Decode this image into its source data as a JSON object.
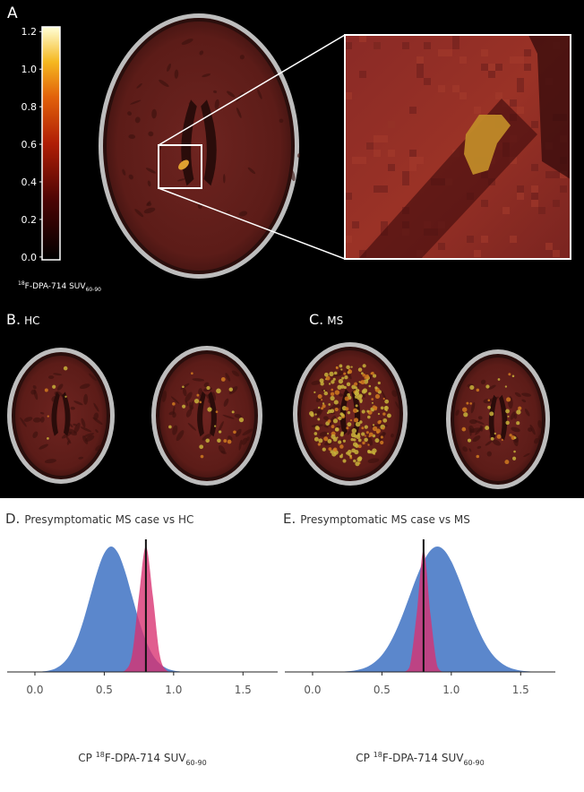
{
  "panels": {
    "a": {
      "label": "A",
      "colorbar": {
        "clim": [
          -0.015,
          1.225
        ],
        "ticks": [
          {
            "value": 0,
            "label": "0.0"
          },
          {
            "value": 0.2,
            "label": "0.2"
          },
          {
            "value": 0.4,
            "label": "0.4"
          },
          {
            "value": 0.6,
            "label": "0.6"
          },
          {
            "value": 0.8,
            "label": "0.8"
          },
          {
            "value": 1,
            "label": "1.0"
          },
          {
            "value": 1.2,
            "label": "1.2"
          }
        ],
        "label": {
          "sup": "18",
          "main": "F-DPA-714 SUV",
          "sub": "60-90"
        }
      }
    },
    "b": {
      "letter": "B.",
      "group": "HC"
    },
    "c": {
      "letter": "C.",
      "group": "MS"
    }
  },
  "chart_data": [
    {
      "type": "density",
      "title": {
        "letter": "D.",
        "text": "Presymptomatic MS case vs HC"
      },
      "x": [
        -0.1,
        -0.05,
        0,
        0.05,
        0.1,
        0.15,
        0.2,
        0.25,
        0.3,
        0.35,
        0.4,
        0.45,
        0.5,
        0.55,
        0.6,
        0.65,
        0.7,
        0.75,
        0.8,
        0.85,
        0.9,
        0.95,
        1,
        1.05,
        1.1,
        1.15,
        1.2,
        1.25,
        1.3,
        1.35,
        1.4,
        1.45,
        1.5,
        1.55,
        1.6,
        1.65,
        1.7,
        1.75
      ],
      "series": [
        {
          "color": "#5b87cc",
          "values": [
            0,
            0,
            0.001,
            0.004,
            0.011,
            0.029,
            0.066,
            0.135,
            0.249,
            0.411,
            0.607,
            0.801,
            0.946,
            1,
            0.946,
            0.801,
            0.607,
            0.411,
            0.249,
            0.135,
            0.066,
            0.029,
            0.011,
            0.004,
            0.001,
            0,
            0,
            0,
            0,
            0,
            0,
            0,
            0,
            0,
            0,
            0,
            0,
            0
          ]
        },
        {
          "color": "#d8306f",
          "values": [
            0,
            0,
            0,
            0,
            0,
            0,
            0,
            0,
            0,
            0,
            0,
            0,
            0,
            0,
            0,
            0.011,
            0.135,
            0.607,
            1,
            0.607,
            0.135,
            0.011,
            0,
            0,
            0,
            0,
            0,
            0,
            0,
            0,
            0,
            0,
            0,
            0,
            0,
            0,
            0,
            0
          ]
        }
      ],
      "reference_line": 0.8,
      "xlim": [
        -0.2,
        1.75
      ],
      "xticks": [
        {
          "value": 0,
          "label": "0.0"
        },
        {
          "value": 0.5,
          "label": "0.5"
        },
        {
          "value": 1,
          "label": "1.0"
        },
        {
          "value": 1.5,
          "label": "1.5"
        }
      ],
      "x_label": {
        "prefix": "CP ",
        "sup": "18",
        "main": "F-DPA-714 SUV",
        "sub": "60-90"
      }
    },
    {
      "type": "density",
      "title": {
        "letter": "E.",
        "text": "Presymptomatic MS case vs MS"
      },
      "x": [
        -0.1,
        -0.05,
        0,
        0.05,
        0.1,
        0.15,
        0.2,
        0.25,
        0.3,
        0.35,
        0.4,
        0.45,
        0.5,
        0.55,
        0.6,
        0.65,
        0.7,
        0.75,
        0.8,
        0.85,
        0.9,
        0.95,
        1,
        1.05,
        1.1,
        1.15,
        1.2,
        1.25,
        1.3,
        1.35,
        1.4,
        1.45,
        1.5,
        1.55,
        1.6,
        1.65,
        1.7,
        1.75
      ],
      "series": [
        {
          "color": "#5b87cc",
          "values": [
            0,
            0,
            0,
            0,
            0,
            0.001,
            0.002,
            0.005,
            0.011,
            0.023,
            0.044,
            0.08,
            0.135,
            0.216,
            0.325,
            0.458,
            0.607,
            0.755,
            0.882,
            0.969,
            1,
            0.969,
            0.882,
            0.755,
            0.607,
            0.458,
            0.325,
            0.216,
            0.135,
            0.08,
            0.044,
            0.023,
            0.011,
            0.005,
            0.002,
            0.001,
            0,
            0
          ]
        },
        {
          "color": "#d8306f",
          "values": [
            0,
            0,
            0,
            0,
            0,
            0,
            0,
            0,
            0,
            0,
            0,
            0,
            0,
            0,
            0,
            0,
            0.044,
            0.458,
            0.97,
            0.458,
            0.044,
            0,
            0,
            0,
            0,
            0,
            0,
            0,
            0,
            0,
            0,
            0,
            0,
            0,
            0,
            0,
            0,
            0
          ]
        }
      ],
      "reference_line": 0.8,
      "xlim": [
        -0.2,
        1.75
      ],
      "xticks": [
        {
          "value": 0,
          "label": "0.0"
        },
        {
          "value": 0.5,
          "label": "0.5"
        },
        {
          "value": 1,
          "label": "1.0"
        },
        {
          "value": 1.5,
          "label": "1.5"
        }
      ],
      "x_label": {
        "prefix": "CP ",
        "sup": "18",
        "main": "F-DPA-714 SUV",
        "sub": "60-90"
      }
    }
  ]
}
